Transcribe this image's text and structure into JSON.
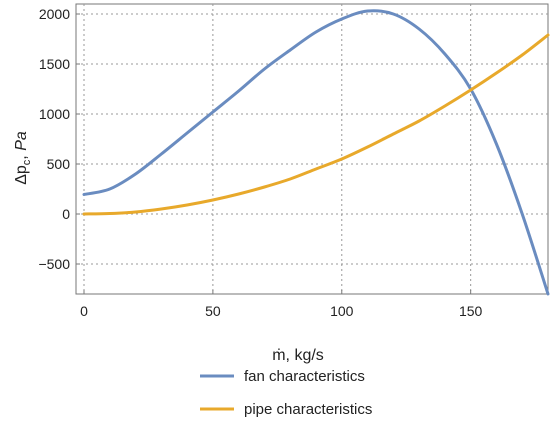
{
  "chart_data": {
    "type": "line",
    "xlabel": "ṁ, kg/s",
    "ylabel": "Δp",
    "ylabel_sub": "c",
    "ylabel_unit": "Pa",
    "xlim": [
      0,
      180
    ],
    "ylim": [
      -800,
      2100
    ],
    "x_ticks": [
      0,
      50,
      100,
      150
    ],
    "y_ticks": [
      -500,
      0,
      500,
      1000,
      1500,
      2000
    ],
    "x_tick_labels": [
      "0",
      "50",
      "100",
      "150"
    ],
    "y_tick_labels": [
      "−500",
      "0",
      "500",
      "1000",
      "1500",
      "2000"
    ],
    "grid": true,
    "legend_position": "bottom",
    "series": [
      {
        "name": "fan characteristics",
        "color": "#6a8cc0",
        "x": [
          0,
          10,
          20,
          30,
          40,
          50,
          60,
          70,
          80,
          90,
          100,
          110,
          120,
          130,
          140,
          150,
          160,
          170,
          180
        ],
        "y": [
          195,
          250,
          400,
          600,
          810,
          1020,
          1230,
          1450,
          1640,
          1820,
          1950,
          2030,
          2000,
          1850,
          1600,
          1250,
          700,
          0,
          -800
        ]
      },
      {
        "name": "pipe characteristics",
        "color": "#e8a92b",
        "x": [
          0,
          10,
          20,
          30,
          40,
          50,
          60,
          70,
          80,
          90,
          100,
          110,
          120,
          130,
          140,
          150,
          160,
          170,
          180
        ],
        "y": [
          0,
          5,
          20,
          50,
          90,
          140,
          200,
          270,
          350,
          450,
          550,
          670,
          800,
          930,
          1080,
          1240,
          1410,
          1590,
          1790
        ]
      }
    ]
  }
}
